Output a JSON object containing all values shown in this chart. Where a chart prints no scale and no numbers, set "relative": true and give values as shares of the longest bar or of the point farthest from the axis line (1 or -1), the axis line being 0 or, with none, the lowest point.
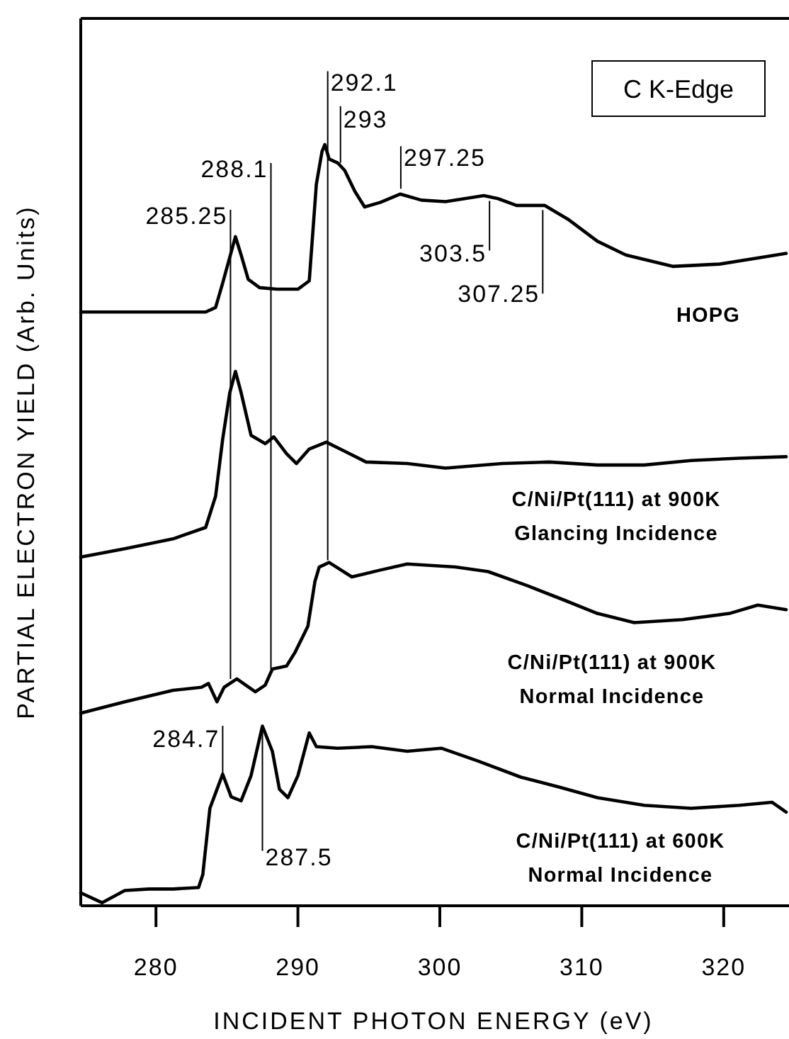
{
  "chart_data": {
    "type": "line",
    "title": "C K-Edge",
    "xlabel": "INCIDENT PHOTON ENERGY (eV)",
    "ylabel": "PARTIAL ELECTRON YIELD (Arb. Units)",
    "relative": true,
    "xlim": [
      274.7,
      324.4
    ],
    "xticks": [
      280,
      290,
      300,
      310,
      320
    ],
    "series": [
      {
        "name": "HOPG",
        "color": "#000000",
        "x": [
          274.7,
          283.5,
          284.2,
          284.7,
          285.6,
          286.0,
          286.5,
          287.3,
          288.5,
          290.0,
          290.8,
          291.3,
          291.7,
          291.9,
          292.2,
          292.8,
          293.3,
          294.0,
          294.7,
          295.8,
          297.2,
          298.7,
          300.4,
          303.1,
          304.1,
          305.4,
          307.4,
          309.1,
          311.1,
          313.1,
          316.4,
          319.7,
          322.4,
          324.4
        ],
        "values": [
          0.78,
          0.78,
          0.786,
          0.818,
          0.879,
          0.855,
          0.823,
          0.812,
          0.81,
          0.81,
          0.821,
          0.948,
          0.991,
          1.0,
          0.981,
          0.976,
          0.966,
          0.939,
          0.918,
          0.924,
          0.935,
          0.927,
          0.925,
          0.933,
          0.929,
          0.92,
          0.92,
          0.901,
          0.873,
          0.855,
          0.84,
          0.843,
          0.851,
          0.857
        ]
      },
      {
        "name": "C/Ni/Pt(111) at 900K\nGlancing Incidence",
        "color": "#000000",
        "x": [
          274.7,
          277.8,
          281.2,
          283.5,
          284.2,
          284.7,
          285.2,
          285.6,
          286.0,
          286.7,
          287.7,
          288.3,
          289.2,
          289.9,
          290.8,
          292.0,
          293.2,
          294.8,
          297.7,
          300.4,
          304.4,
          307.7,
          311.1,
          314.4,
          317.7,
          321.1,
          324.4
        ],
        "values": [
          0.458,
          0.469,
          0.482,
          0.497,
          0.538,
          0.613,
          0.674,
          0.702,
          0.674,
          0.618,
          0.607,
          0.616,
          0.594,
          0.581,
          0.6,
          0.609,
          0.598,
          0.583,
          0.581,
          0.575,
          0.581,
          0.583,
          0.579,
          0.579,
          0.585,
          0.588,
          0.59
        ]
      },
      {
        "name": "C/Ni/Pt(111) at 900K\nNormal Incidence",
        "color": "#000000",
        "x": [
          274.7,
          277.8,
          281.2,
          283.2,
          283.7,
          284.3,
          284.8,
          285.7,
          287.0,
          287.7,
          288.2,
          289.2,
          289.8,
          290.7,
          291.2,
          291.5,
          292.2,
          293.8,
          295.8,
          297.7,
          301.1,
          303.4,
          306.1,
          308.7,
          311.1,
          313.7,
          317.1,
          320.4,
          322.4,
          324.4
        ],
        "values": [
          0.253,
          0.268,
          0.283,
          0.287,
          0.292,
          0.268,
          0.287,
          0.298,
          0.281,
          0.29,
          0.311,
          0.315,
          0.333,
          0.367,
          0.426,
          0.445,
          0.451,
          0.432,
          0.441,
          0.449,
          0.445,
          0.439,
          0.421,
          0.402,
          0.384,
          0.372,
          0.376,
          0.384,
          0.395,
          0.389
        ]
      },
      {
        "name": "C/Ni/Pt(111) at 600K\nNormal Incidence",
        "color": "#000000",
        "x": [
          274.7,
          276.2,
          277.8,
          279.5,
          281.2,
          283.0,
          283.3,
          283.8,
          284.3,
          284.7,
          285.3,
          286.0,
          286.7,
          287.5,
          288.2,
          288.7,
          289.3,
          290.0,
          290.8,
          291.3,
          292.8,
          295.2,
          297.7,
          300.1,
          302.7,
          305.7,
          308.4,
          311.1,
          314.4,
          317.7,
          321.1,
          323.4,
          324.4
        ],
        "values": [
          0.017,
          0.004,
          0.02,
          0.022,
          0.022,
          0.024,
          0.041,
          0.128,
          0.153,
          0.173,
          0.143,
          0.138,
          0.171,
          0.236,
          0.203,
          0.153,
          0.142,
          0.171,
          0.227,
          0.209,
          0.207,
          0.209,
          0.203,
          0.207,
          0.19,
          0.169,
          0.156,
          0.142,
          0.132,
          0.128,
          0.132,
          0.136,
          0.123
        ]
      }
    ],
    "annotations": [
      {
        "text": "285.25",
        "x": 285.25,
        "y": 0.298
      },
      {
        "text": "288.1",
        "x": 288.1,
        "y": 0.311
      },
      {
        "text": "292.1",
        "x": 292.1,
        "y": 0.454
      },
      {
        "text": "293",
        "x": 293,
        "y": 0.976
      },
      {
        "text": "297.25",
        "x": 297.25,
        "y": 0.942
      },
      {
        "text": "303.5",
        "x": 303.5,
        "y": 0.926
      },
      {
        "text": "307.25",
        "x": 307.25,
        "y": 0.914
      },
      {
        "text": "284.7",
        "x": 284.7,
        "y": 0.175
      },
      {
        "text": "287.5",
        "x": 287.5,
        "y": 0.236
      }
    ]
  }
}
